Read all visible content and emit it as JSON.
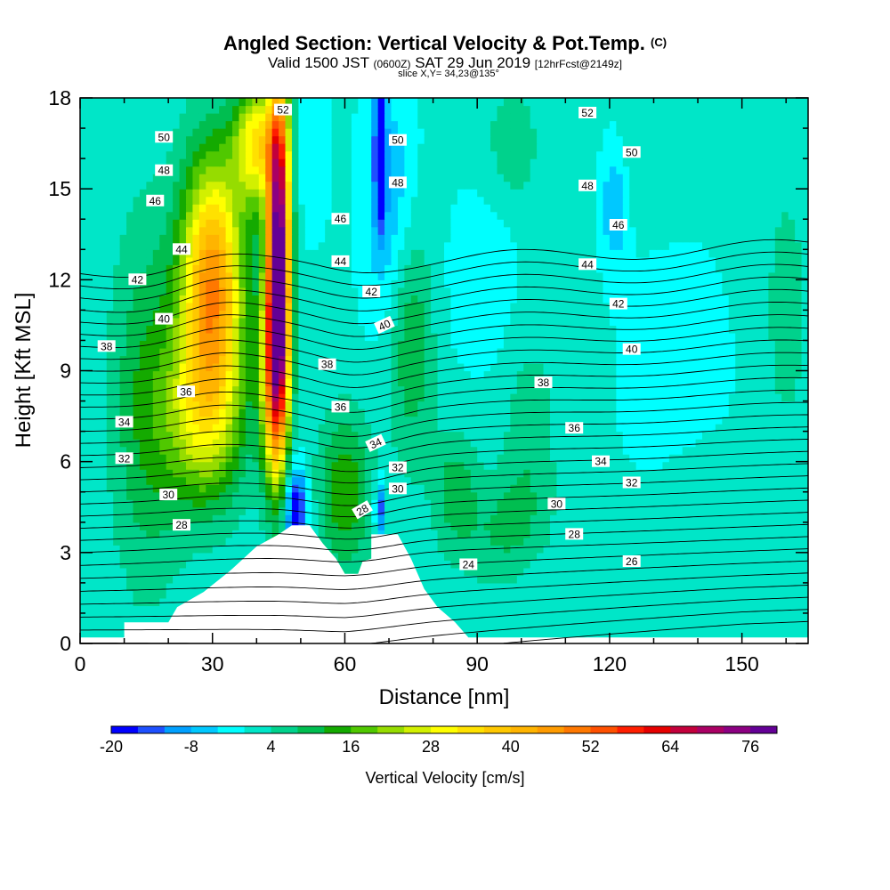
{
  "header": {
    "title": "Angled Section: Vertical Velocity & Pot.Temp.",
    "title_tag": "(C)",
    "valid_prefix": "Valid 1500 JST",
    "valid_utc": "(0600Z)",
    "valid_date": "SAT 29 Jun 2019",
    "forecast": "[12hrFcst@2149z]",
    "slice": "slice X,Y= 34,23@135°"
  },
  "chart_data": {
    "type": "heatmap",
    "xlabel": "Distance [nm]",
    "ylabel": "Height [Kft MSL]",
    "xlim": [
      0,
      165
    ],
    "ylim": [
      0,
      18
    ],
    "xticks": [
      0,
      30,
      60,
      90,
      120,
      150
    ],
    "yticks": [
      0,
      3,
      6,
      9,
      12,
      15,
      18
    ],
    "grid": false,
    "colorbar": {
      "label": "Vertical Velocity [cm/s]",
      "range": [
        -20,
        80
      ],
      "step": 4,
      "tick_labels": [
        -20,
        -8,
        4,
        16,
        28,
        40,
        52,
        64,
        76
      ],
      "colors": [
        "#0000ff",
        "#1e50ff",
        "#00a0ff",
        "#00c8ff",
        "#00ffff",
        "#00e6c8",
        "#00d28c",
        "#00be50",
        "#14aa00",
        "#50c800",
        "#96dc00",
        "#d2f000",
        "#ffff00",
        "#ffe100",
        "#ffc800",
        "#ffb400",
        "#ff9b00",
        "#ff7800",
        "#ff5000",
        "#ff1e00",
        "#e60000",
        "#c3003c",
        "#aa0064",
        "#8c0082",
        "#640096"
      ]
    },
    "velocity_centers": [
      {
        "x": 30,
        "y": 12.0,
        "value": 46,
        "sx": 7,
        "sy": 4.0
      },
      {
        "x": 28,
        "y": 7.5,
        "value": 24,
        "sx": 9,
        "sy": 3.0
      },
      {
        "x": 45,
        "y": 13.0,
        "value": 78,
        "sx": 2.5,
        "sy": 5.5
      },
      {
        "x": 44,
        "y": 9.0,
        "value": 40,
        "sx": 3.0,
        "sy": 3.5
      },
      {
        "x": 40,
        "y": 16.5,
        "value": 32,
        "sx": 5,
        "sy": 2.0
      },
      {
        "x": 15,
        "y": 8.0,
        "value": 12,
        "sx": 8,
        "sy": 6.0
      },
      {
        "x": 60,
        "y": 5.0,
        "value": 16,
        "sx": 6,
        "sy": 2.5
      },
      {
        "x": 75,
        "y": 10.0,
        "value": 12,
        "sx": 5,
        "sy": 4.0
      },
      {
        "x": 85,
        "y": 5.0,
        "value": 10,
        "sx": 5,
        "sy": 2.0
      },
      {
        "x": 97,
        "y": 3.5,
        "value": 10,
        "sx": 9,
        "sy": 2.0
      },
      {
        "x": 102,
        "y": 7.0,
        "value": 7,
        "sx": 6,
        "sy": 3.0
      },
      {
        "x": 98,
        "y": 16.5,
        "value": 7,
        "sx": 6,
        "sy": 2.0
      },
      {
        "x": 140,
        "y": 5.0,
        "value": 4,
        "sx": 9,
        "sy": 2.0
      },
      {
        "x": 160,
        "y": 11.0,
        "value": 5,
        "sx": 7,
        "sy": 6.0
      },
      {
        "x": 130,
        "y": 16.0,
        "value": 4,
        "sx": 8,
        "sy": 2.0
      },
      {
        "x": 49,
        "y": 4.3,
        "value": -22,
        "sx": 2.5,
        "sy": 1.5
      },
      {
        "x": 68,
        "y": 16.5,
        "value": -24,
        "sx": 1.2,
        "sy": 2.5
      },
      {
        "x": 68,
        "y": 4.5,
        "value": -16,
        "sx": 1.2,
        "sy": 1.0
      },
      {
        "x": 70,
        "y": 14.5,
        "value": -8,
        "sx": 6,
        "sy": 4.0
      },
      {
        "x": 121,
        "y": 14.5,
        "value": -8,
        "sx": 3,
        "sy": 2.0
      },
      {
        "x": 52,
        "y": 16.0,
        "value": -2,
        "sx": 5,
        "sy": 3.0
      },
      {
        "x": 91,
        "y": 12.0,
        "value": -3,
        "sx": 8,
        "sy": 3.0
      },
      {
        "x": 135,
        "y": 9.0,
        "value": -3,
        "sx": 12,
        "sy": 4.0
      },
      {
        "x": 100,
        "y": 2.5,
        "value": -2,
        "sx": 8,
        "sy": 1.5
      }
    ],
    "velocity_background": 1,
    "terrain": [
      [
        0,
        0.2
      ],
      [
        10,
        0.2
      ],
      [
        10,
        0.7
      ],
      [
        20,
        0.7
      ],
      [
        22,
        1.2
      ],
      [
        28,
        1.7
      ],
      [
        34,
        2.4
      ],
      [
        40,
        3.2
      ],
      [
        45,
        3.6
      ],
      [
        48,
        3.9
      ],
      [
        52,
        3.9
      ],
      [
        55,
        3.3
      ],
      [
        58,
        2.8
      ],
      [
        60,
        2.3
      ],
      [
        63,
        2.3
      ],
      [
        64,
        2.7
      ],
      [
        66,
        2.8
      ],
      [
        66,
        3.6
      ],
      [
        72,
        3.6
      ],
      [
        75,
        2.8
      ],
      [
        78,
        1.8
      ],
      [
        81,
        1.2
      ],
      [
        85,
        0.7
      ],
      [
        88,
        0.2
      ],
      [
        165,
        0.2
      ]
    ],
    "isentropes": {
      "levels": [
        22,
        23,
        24,
        25,
        26,
        27,
        28,
        29,
        30,
        31,
        32,
        33,
        34,
        35,
        36,
        37,
        38,
        39,
        40,
        41,
        42,
        43,
        44,
        45,
        46,
        47,
        48,
        49,
        50,
        51,
        52,
        53
      ],
      "labels": [
        {
          "text": "52",
          "x": 46,
          "y": 17.6,
          "angle": 0
        },
        {
          "text": "52",
          "x": 115,
          "y": 17.5,
          "angle": 0
        },
        {
          "text": "50",
          "x": 19,
          "y": 16.7,
          "angle": 0
        },
        {
          "text": "50",
          "x": 72,
          "y": 16.6,
          "angle": 0
        },
        {
          "text": "50",
          "x": 125,
          "y": 16.2,
          "angle": 0
        },
        {
          "text": "48",
          "x": 19,
          "y": 15.6,
          "angle": 0
        },
        {
          "text": "48",
          "x": 72,
          "y": 15.2,
          "angle": 0
        },
        {
          "text": "48",
          "x": 115,
          "y": 15.1,
          "angle": 0
        },
        {
          "text": "46",
          "x": 17,
          "y": 14.6,
          "angle": 0
        },
        {
          "text": "46",
          "x": 59,
          "y": 14.0,
          "angle": 0
        },
        {
          "text": "46",
          "x": 122,
          "y": 13.8,
          "angle": 0
        },
        {
          "text": "44",
          "x": 23,
          "y": 13.0,
          "angle": 0
        },
        {
          "text": "44",
          "x": 59,
          "y": 12.6,
          "angle": 0
        },
        {
          "text": "44",
          "x": 115,
          "y": 12.5,
          "angle": 0
        },
        {
          "text": "42",
          "x": 13,
          "y": 12.0,
          "angle": 0
        },
        {
          "text": "42",
          "x": 66,
          "y": 11.6,
          "angle": 0
        },
        {
          "text": "42",
          "x": 122,
          "y": 11.2,
          "angle": 0
        },
        {
          "text": "40",
          "x": 19,
          "y": 10.7,
          "angle": 0
        },
        {
          "text": "40",
          "x": 69,
          "y": 10.5,
          "angle": -25
        },
        {
          "text": "40",
          "x": 125,
          "y": 9.7,
          "angle": 0
        },
        {
          "text": "38",
          "x": 6,
          "y": 9.8,
          "angle": 0
        },
        {
          "text": "38",
          "x": 56,
          "y": 9.2,
          "angle": 0
        },
        {
          "text": "38",
          "x": 105,
          "y": 8.6,
          "angle": 0
        },
        {
          "text": "36",
          "x": 24,
          "y": 8.3,
          "angle": 0
        },
        {
          "text": "36",
          "x": 59,
          "y": 7.8,
          "angle": 0
        },
        {
          "text": "36",
          "x": 112,
          "y": 7.1,
          "angle": 0
        },
        {
          "text": "34",
          "x": 10,
          "y": 7.3,
          "angle": 0
        },
        {
          "text": "34",
          "x": 67,
          "y": 6.6,
          "angle": -25
        },
        {
          "text": "34",
          "x": 118,
          "y": 6.0,
          "angle": 0
        },
        {
          "text": "32",
          "x": 10,
          "y": 6.1,
          "angle": 0
        },
        {
          "text": "32",
          "x": 72,
          "y": 5.8,
          "angle": 0
        },
        {
          "text": "32",
          "x": 125,
          "y": 5.3,
          "angle": 0
        },
        {
          "text": "30",
          "x": 20,
          "y": 4.9,
          "angle": 0
        },
        {
          "text": "30",
          "x": 72,
          "y": 5.1,
          "angle": 0
        },
        {
          "text": "30",
          "x": 108,
          "y": 4.6,
          "angle": 0
        },
        {
          "text": "28",
          "x": 23,
          "y": 3.9,
          "angle": 0
        },
        {
          "text": "28",
          "x": 64,
          "y": 4.4,
          "angle": -30
        },
        {
          "text": "28",
          "x": 112,
          "y": 3.6,
          "angle": 0
        },
        {
          "text": "26",
          "x": 125,
          "y": 2.7,
          "angle": 0
        },
        {
          "text": "24",
          "x": 88,
          "y": 2.6,
          "angle": 0
        }
      ]
    }
  }
}
